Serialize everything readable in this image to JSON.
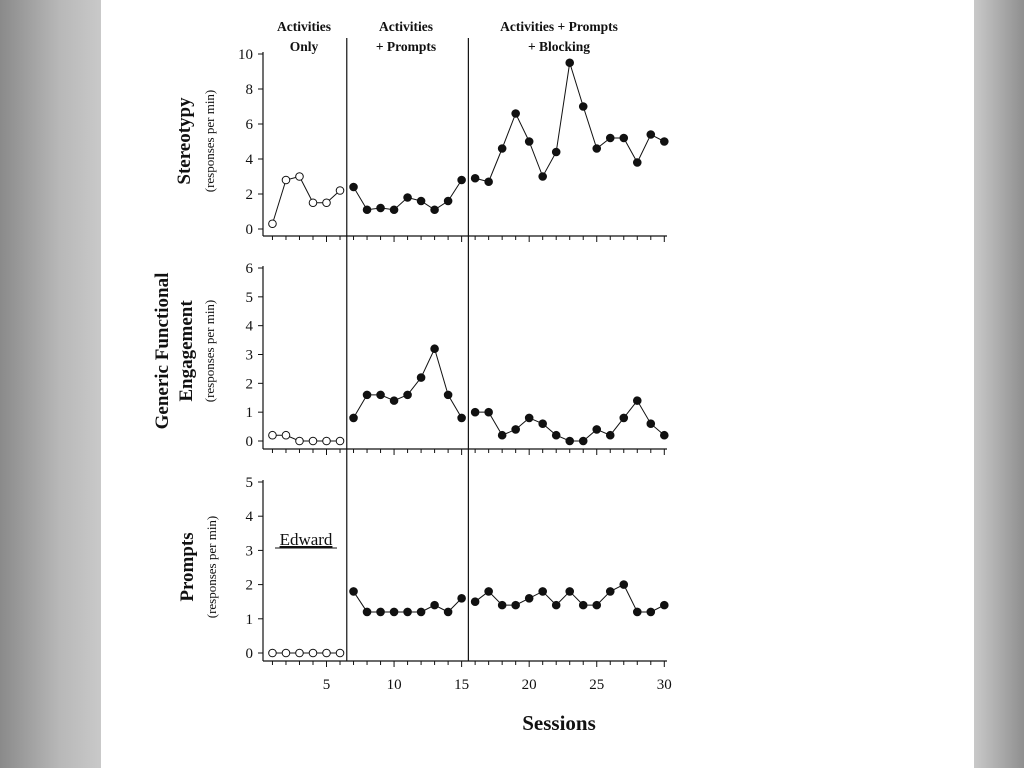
{
  "chart_data": {
    "type": "line",
    "participant": "Edward",
    "xlabel": "Sessions",
    "x_ticks": [
      "5",
      "10",
      "15",
      "20",
      "25",
      "30"
    ],
    "phases": [
      {
        "label_lines": [
          "Activities",
          "Only"
        ]
      },
      {
        "label_lines": [
          "Activities",
          "+ Prompts"
        ]
      },
      {
        "label_lines": [
          "Activities + Prompts",
          "+ Blocking"
        ]
      }
    ],
    "phase_change_after_sessions": [
      6.5,
      15.5
    ],
    "panels": [
      {
        "title": "Stereotypy",
        "ylabel": "(responses per min)",
        "ylim": [
          0,
          10
        ],
        "y_ticks": [
          "0",
          "2",
          "4",
          "6",
          "8",
          "10"
        ],
        "segments": [
          {
            "marker": "open",
            "x": [
              1,
              2,
              3,
              4,
              5,
              6
            ],
            "y": [
              0.3,
              2.8,
              3.0,
              1.5,
              1.5,
              2.2
            ]
          },
          {
            "marker": "filled",
            "x": [
              7,
              8,
              9,
              10,
              11,
              12,
              13,
              14,
              15
            ],
            "y": [
              2.4,
              1.1,
              1.2,
              1.1,
              1.8,
              1.6,
              1.1,
              1.6,
              2.8
            ]
          },
          {
            "marker": "filled",
            "x": [
              16,
              17,
              18,
              19,
              20,
              21,
              22,
              23,
              24,
              25,
              26,
              27,
              28,
              29,
              30
            ],
            "y": [
              2.9,
              2.7,
              4.6,
              6.6,
              5.0,
              3.0,
              4.4,
              9.5,
              7.0,
              4.6,
              5.2,
              5.2,
              3.8,
              5.4,
              5.0
            ]
          }
        ]
      },
      {
        "title_lines": [
          "Generic Functional",
          "Engagement"
        ],
        "ylabel": "(responses per min)",
        "ylim": [
          0,
          6
        ],
        "y_ticks": [
          "0",
          "1",
          "2",
          "3",
          "4",
          "5",
          "6"
        ],
        "segments": [
          {
            "marker": "open",
            "x": [
              1,
              2,
              3,
              4,
              5,
              6
            ],
            "y": [
              0.2,
              0.2,
              0.0,
              0.0,
              0.0,
              0.0
            ]
          },
          {
            "marker": "filled",
            "x": [
              7,
              8,
              9,
              10,
              11,
              12,
              13,
              14,
              15
            ],
            "y": [
              0.8,
              1.6,
              1.6,
              1.4,
              1.6,
              2.2,
              3.2,
              1.6,
              0.8
            ]
          },
          {
            "marker": "filled",
            "x": [
              16,
              17,
              18,
              19,
              20,
              21,
              22,
              23,
              24,
              25,
              26,
              27,
              28,
              29,
              30
            ],
            "y": [
              1.0,
              1.0,
              0.2,
              0.4,
              0.8,
              0.6,
              0.2,
              0.0,
              0.0,
              0.4,
              0.2,
              0.8,
              1.4,
              0.6,
              0.2
            ]
          }
        ]
      },
      {
        "title": "Prompts",
        "ylabel": "(responses per min)",
        "ylim": [
          0,
          5
        ],
        "y_ticks": [
          "0",
          "1",
          "2",
          "3",
          "4",
          "5"
        ],
        "segments": [
          {
            "marker": "open",
            "x": [
              1,
              2,
              3,
              4,
              5,
              6
            ],
            "y": [
              0,
              0,
              0,
              0,
              0,
              0
            ]
          },
          {
            "marker": "filled",
            "x": [
              7,
              8,
              9,
              10,
              11,
              12,
              13,
              14,
              15
            ],
            "y": [
              1.8,
              1.2,
              1.2,
              1.2,
              1.2,
              1.2,
              1.4,
              1.2,
              1.6
            ]
          },
          {
            "marker": "filled",
            "x": [
              16,
              17,
              18,
              19,
              20,
              21,
              22,
              23,
              24,
              25,
              26,
              27,
              28,
              29,
              30
            ],
            "y": [
              1.5,
              1.8,
              1.4,
              1.4,
              1.6,
              1.8,
              1.4,
              1.8,
              1.4,
              1.4,
              1.8,
              2.0,
              1.2,
              1.2,
              1.4
            ]
          }
        ]
      }
    ]
  }
}
